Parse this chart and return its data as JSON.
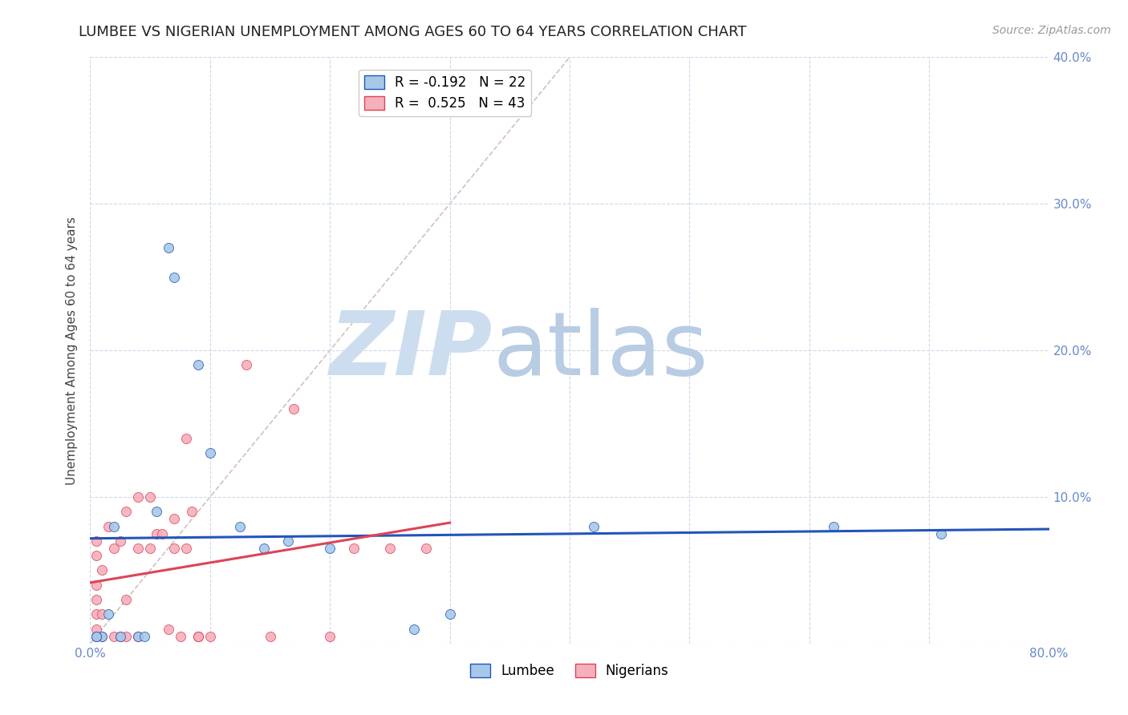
{
  "title": "LUMBEE VS NIGERIAN UNEMPLOYMENT AMONG AGES 60 TO 64 YEARS CORRELATION CHART",
  "source": "Source: ZipAtlas.com",
  "xlabel": "",
  "ylabel": "Unemployment Among Ages 60 to 64 years",
  "xlim": [
    0.0,
    0.8
  ],
  "ylim": [
    0.0,
    0.4
  ],
  "xticks": [
    0.0,
    0.1,
    0.2,
    0.3,
    0.4,
    0.5,
    0.6,
    0.7,
    0.8
  ],
  "yticks": [
    0.0,
    0.1,
    0.2,
    0.3,
    0.4
  ],
  "ytick_labels": [
    "",
    "10.0%",
    "20.0%",
    "30.0%",
    "40.0%"
  ],
  "xtick_labels": [
    "0.0%",
    "",
    "",
    "",
    "",
    "",
    "",
    "",
    "80.0%"
  ],
  "lumbee_color": "#a8c8e8",
  "nigerian_color": "#f5b0bc",
  "lumbee_line_color": "#2255bb",
  "nigerian_line_color": "#dd4455",
  "diagonal_color": "#c8b0b0",
  "legend_lumbee_R": "-0.192",
  "legend_lumbee_N": "22",
  "legend_nigerian_R": "0.525",
  "legend_nigerian_N": "43",
  "lumbee_x": [
    0.01,
    0.015,
    0.025,
    0.02,
    0.04,
    0.045,
    0.055,
    0.065,
    0.07,
    0.09,
    0.1,
    0.125,
    0.145,
    0.165,
    0.2,
    0.27,
    0.3,
    0.42,
    0.62,
    0.71,
    0.005,
    0.005
  ],
  "lumbee_y": [
    0.005,
    0.02,
    0.005,
    0.08,
    0.005,
    0.005,
    0.09,
    0.27,
    0.25,
    0.19,
    0.13,
    0.08,
    0.065,
    0.07,
    0.065,
    0.01,
    0.02,
    0.08,
    0.08,
    0.075,
    0.005,
    0.005
  ],
  "nigerian_x": [
    0.005,
    0.005,
    0.005,
    0.005,
    0.005,
    0.005,
    0.005,
    0.01,
    0.01,
    0.01,
    0.015,
    0.02,
    0.02,
    0.025,
    0.025,
    0.03,
    0.03,
    0.03,
    0.04,
    0.04,
    0.04,
    0.05,
    0.05,
    0.055,
    0.06,
    0.065,
    0.07,
    0.07,
    0.075,
    0.08,
    0.08,
    0.085,
    0.09,
    0.09,
    0.09,
    0.1,
    0.13,
    0.15,
    0.17,
    0.2,
    0.22,
    0.25,
    0.28
  ],
  "nigerian_y": [
    0.005,
    0.01,
    0.02,
    0.03,
    0.04,
    0.06,
    0.07,
    0.005,
    0.02,
    0.05,
    0.08,
    0.005,
    0.065,
    0.005,
    0.07,
    0.005,
    0.03,
    0.09,
    0.005,
    0.065,
    0.1,
    0.065,
    0.1,
    0.075,
    0.075,
    0.01,
    0.065,
    0.085,
    0.005,
    0.065,
    0.14,
    0.09,
    0.005,
    0.005,
    0.005,
    0.005,
    0.19,
    0.005,
    0.16,
    0.005,
    0.065,
    0.065,
    0.065
  ],
  "background_color": "#ffffff",
  "grid_color": "#ccd8ec",
  "axis_color": "#6688cc",
  "watermark_zip_color": "#ccddf0",
  "watermark_atlas_color": "#b8cce4",
  "title_fontsize": 13,
  "axis_label_fontsize": 11,
  "tick_fontsize": 11,
  "legend_fontsize": 12,
  "marker_size": 75
}
